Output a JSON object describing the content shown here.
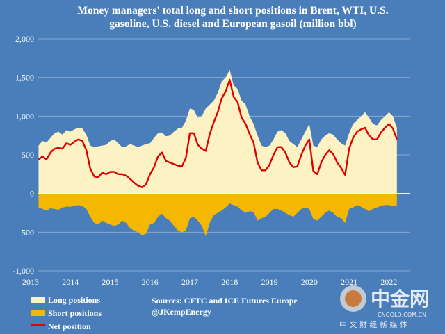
{
  "chart_data": {
    "type": "area",
    "title_line1": "Money managers' total long and short positions in Brent, WTI, U.S.",
    "title_line2": "gasoline, U.S. diesel and European gasoil  (million bbl)",
    "ylim": [
      -1000,
      2000
    ],
    "yticks": [
      "2,000",
      "1,500",
      "1,000",
      "500",
      "0",
      "-500",
      "-1,000"
    ],
    "ytick_values": [
      2000,
      1500,
      1000,
      500,
      0,
      -500,
      -1000
    ],
    "xlim": [
      2013.0,
      2022.5
    ],
    "xticks": [
      "2013",
      "2014",
      "2015",
      "2016",
      "2017",
      "2018",
      "2019",
      "2020",
      "2021",
      "2022"
    ],
    "xtick_values": [
      2013,
      2014,
      2015,
      2016,
      2017,
      2018,
      2019,
      2020,
      2021,
      2022
    ],
    "grid": "horizontal",
    "legend_position": "bottom-left",
    "series": [
      {
        "name": "Long positions",
        "color": "#fdf2c4",
        "x": [
          2013.2,
          2013.3,
          2013.4,
          2013.5,
          2013.6,
          2013.7,
          2013.8,
          2013.9,
          2014.0,
          2014.1,
          2014.2,
          2014.3,
          2014.4,
          2014.5,
          2014.6,
          2014.7,
          2014.8,
          2014.9,
          2015.0,
          2015.1,
          2015.2,
          2015.3,
          2015.4,
          2015.5,
          2015.6,
          2015.7,
          2015.8,
          2015.9,
          2016.0,
          2016.1,
          2016.2,
          2016.3,
          2016.4,
          2016.5,
          2016.6,
          2016.7,
          2016.8,
          2016.9,
          2017.0,
          2017.1,
          2017.2,
          2017.3,
          2017.4,
          2017.5,
          2017.6,
          2017.7,
          2017.8,
          2017.9,
          2018.0,
          2018.1,
          2018.2,
          2018.3,
          2018.4,
          2018.5,
          2018.6,
          2018.7,
          2018.8,
          2018.9,
          2019.0,
          2019.1,
          2019.2,
          2019.3,
          2019.4,
          2019.5,
          2019.6,
          2019.7,
          2019.8,
          2019.9,
          2020.0,
          2020.1,
          2020.2,
          2020.3,
          2020.4,
          2020.5,
          2020.6,
          2020.7,
          2020.8,
          2020.9,
          2021.0,
          2021.1,
          2021.2,
          2021.3,
          2021.4,
          2021.5,
          2021.6,
          2021.7,
          2021.8,
          2021.9,
          2022.0,
          2022.1,
          2022.2
        ],
        "values": [
          620,
          680,
          660,
          720,
          780,
          800,
          760,
          820,
          800,
          830,
          850,
          840,
          760,
          620,
          600,
          610,
          620,
          630,
          680,
          700,
          650,
          600,
          610,
          640,
          620,
          600,
          620,
          640,
          650,
          720,
          780,
          790,
          740,
          750,
          800,
          840,
          850,
          940,
          1100,
          1080,
          980,
          1000,
          1100,
          1150,
          1200,
          1300,
          1450,
          1500,
          1600,
          1400,
          1350,
          1200,
          1150,
          1000,
          900,
          750,
          620,
          600,
          620,
          700,
          800,
          820,
          780,
          680,
          640,
          600,
          700,
          800,
          900,
          620,
          600,
          700,
          750,
          780,
          760,
          700,
          650,
          620,
          780,
          900,
          950,
          1000,
          1050,
          980,
          900,
          880,
          950,
          1000,
          1050,
          1000,
          850
        ]
      },
      {
        "name": "Short positions",
        "color": "#f5b800",
        "x": [
          2013.2,
          2013.3,
          2013.4,
          2013.5,
          2013.6,
          2013.7,
          2013.8,
          2013.9,
          2014.0,
          2014.1,
          2014.2,
          2014.3,
          2014.4,
          2014.5,
          2014.6,
          2014.7,
          2014.8,
          2014.9,
          2015.0,
          2015.1,
          2015.2,
          2015.3,
          2015.4,
          2015.5,
          2015.6,
          2015.7,
          2015.8,
          2015.9,
          2016.0,
          2016.1,
          2016.2,
          2016.3,
          2016.4,
          2016.5,
          2016.6,
          2016.7,
          2016.8,
          2016.9,
          2017.0,
          2017.1,
          2017.2,
          2017.3,
          2017.4,
          2017.5,
          2017.6,
          2017.7,
          2017.8,
          2017.9,
          2018.0,
          2018.1,
          2018.2,
          2018.3,
          2018.4,
          2018.5,
          2018.6,
          2018.7,
          2018.8,
          2018.9,
          2019.0,
          2019.1,
          2019.2,
          2019.3,
          2019.4,
          2019.5,
          2019.6,
          2019.7,
          2019.8,
          2019.9,
          2020.0,
          2020.1,
          2020.2,
          2020.3,
          2020.4,
          2020.5,
          2020.6,
          2020.7,
          2020.8,
          2020.9,
          2021.0,
          2021.1,
          2021.2,
          2021.3,
          2021.4,
          2021.5,
          2021.6,
          2021.7,
          2021.8,
          2021.9,
          2022.0,
          2022.1,
          2022.2
        ],
        "values": [
          -180,
          -200,
          -220,
          -190,
          -200,
          -210,
          -180,
          -170,
          -170,
          -160,
          -150,
          -160,
          -200,
          -300,
          -380,
          -400,
          -350,
          -380,
          -400,
          -420,
          -400,
          -350,
          -380,
          -450,
          -480,
          -500,
          -540,
          -520,
          -400,
          -380,
          -300,
          -260,
          -320,
          -350,
          -420,
          -480,
          -500,
          -480,
          -320,
          -300,
          -350,
          -420,
          -550,
          -380,
          -280,
          -250,
          -220,
          -180,
          -130,
          -150,
          -170,
          -220,
          -250,
          -230,
          -240,
          -350,
          -320,
          -300,
          -250,
          -200,
          -200,
          -220,
          -250,
          -280,
          -300,
          -250,
          -200,
          -180,
          -200,
          -330,
          -350,
          -300,
          -250,
          -220,
          -250,
          -300,
          -320,
          -380,
          -200,
          -180,
          -150,
          -170,
          -200,
          -230,
          -200,
          -180,
          -160,
          -150,
          -150,
          -160,
          -150
        ]
      },
      {
        "name": "Net position",
        "color": "#e10000",
        "x": [
          2013.2,
          2013.3,
          2013.4,
          2013.5,
          2013.6,
          2013.7,
          2013.8,
          2013.9,
          2014.0,
          2014.1,
          2014.2,
          2014.3,
          2014.4,
          2014.5,
          2014.6,
          2014.7,
          2014.8,
          2014.9,
          2015.0,
          2015.1,
          2015.2,
          2015.3,
          2015.4,
          2015.5,
          2015.6,
          2015.7,
          2015.8,
          2015.9,
          2016.0,
          2016.1,
          2016.2,
          2016.3,
          2016.4,
          2016.5,
          2016.6,
          2016.7,
          2016.8,
          2016.9,
          2017.0,
          2017.1,
          2017.2,
          2017.3,
          2017.4,
          2017.5,
          2017.6,
          2017.7,
          2017.8,
          2017.9,
          2018.0,
          2018.1,
          2018.2,
          2018.3,
          2018.4,
          2018.5,
          2018.6,
          2018.7,
          2018.8,
          2018.9,
          2019.0,
          2019.1,
          2019.2,
          2019.3,
          2019.4,
          2019.5,
          2019.6,
          2019.7,
          2019.8,
          2019.9,
          2020.0,
          2020.1,
          2020.2,
          2020.3,
          2020.4,
          2020.5,
          2020.6,
          2020.7,
          2020.8,
          2020.9,
          2021.0,
          2021.1,
          2021.2,
          2021.3,
          2021.4,
          2021.5,
          2021.6,
          2021.7,
          2021.8,
          2021.9,
          2022.0,
          2022.1,
          2022.2
        ],
        "values": [
          440,
          480,
          440,
          530,
          580,
          590,
          580,
          650,
          630,
          670,
          700,
          680,
          560,
          320,
          220,
          210,
          270,
          250,
          280,
          280,
          250,
          250,
          230,
          190,
          140,
          100,
          80,
          120,
          250,
          340,
          480,
          530,
          420,
          400,
          380,
          360,
          350,
          460,
          780,
          780,
          630,
          580,
          550,
          770,
          920,
          1050,
          1230,
          1320,
          1470,
          1250,
          1180,
          980,
          900,
          770,
          660,
          400,
          300,
          300,
          370,
          500,
          600,
          600,
          530,
          400,
          340,
          350,
          500,
          620,
          700,
          290,
          250,
          400,
          500,
          560,
          510,
          400,
          330,
          240,
          580,
          720,
          800,
          830,
          850,
          750,
          700,
          700,
          790,
          850,
          900,
          840,
          700
        ]
      }
    ]
  },
  "legend": {
    "long_label": "Long positions",
    "short_label": "Short positions",
    "net_label": "Net position"
  },
  "source": {
    "line1": "Sources: CFTC and ICE Futures Europe",
    "line2": "@JKempEnergy"
  },
  "watermark": {
    "brand": "中金网",
    "url": "CNGOLD.COM.CN",
    "tagline": "中 文 财 经 新 媒 体"
  },
  "colors": {
    "background": "#4a7ebb",
    "grid": "#8aa9d3"
  }
}
